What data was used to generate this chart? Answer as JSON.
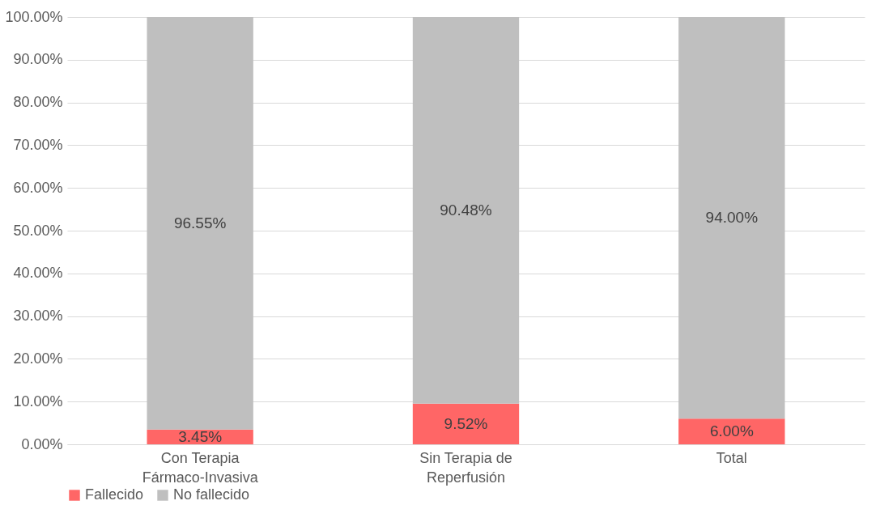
{
  "chart_data": {
    "type": "bar",
    "stacked": true,
    "categories": [
      "Con Terapia Fármaco-Invasiva",
      "Sin Terapia de Reperfusión",
      "Total"
    ],
    "series": [
      {
        "name": "Fallecido",
        "color": "#ff6666",
        "values": [
          3.45,
          9.52,
          6.0
        ],
        "value_labels": [
          "3.45%",
          "9.52%",
          "6.00%"
        ]
      },
      {
        "name": "No fallecido",
        "color": "#bfbfbf",
        "values": [
          96.55,
          90.48,
          94.0
        ],
        "value_labels": [
          "96.55%",
          "90.48%",
          "94.00%"
        ]
      }
    ],
    "ylim": [
      0,
      100
    ],
    "yticks": [
      {
        "value": 0,
        "label": "0.00%"
      },
      {
        "value": 10,
        "label": "10.00%"
      },
      {
        "value": 20,
        "label": "20.00%"
      },
      {
        "value": 30,
        "label": "30.00%"
      },
      {
        "value": 40,
        "label": "40.00%"
      },
      {
        "value": 50,
        "label": "50.00%"
      },
      {
        "value": 60,
        "label": "60.00%"
      },
      {
        "value": 70,
        "label": "70.00%"
      },
      {
        "value": 80,
        "label": "80.00%"
      },
      {
        "value": 90,
        "label": "90.00%"
      },
      {
        "value": 100,
        "label": "100.00%"
      }
    ],
    "grid": true,
    "legend": "bottom"
  }
}
